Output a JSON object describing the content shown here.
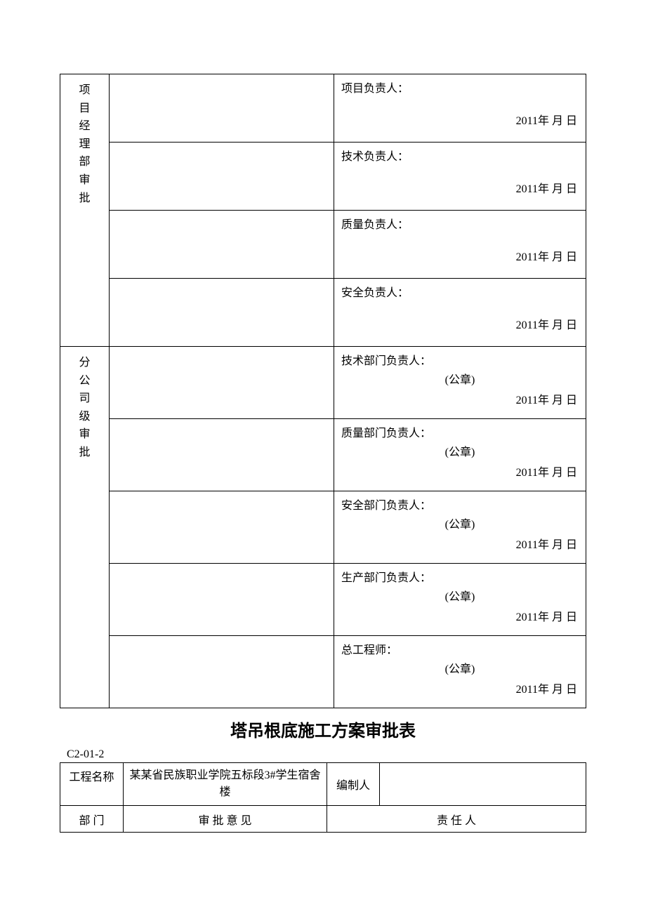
{
  "table1": {
    "section1": {
      "label": "项目经理部审批",
      "rows": [
        {
          "person": "项目负责人：",
          "date": "2011年 月 日"
        },
        {
          "person": "技术负责人：",
          "date": "2011年 月 日"
        },
        {
          "person": "质量负责人：",
          "date": "2011年 月 日"
        },
        {
          "person": "安全负责人：",
          "date": "2011年 月 日"
        }
      ]
    },
    "section2": {
      "label": "分公司级审批",
      "rows": [
        {
          "person": "技术部门负责人：",
          "seal": "(公章)",
          "date": "2011年 月 日"
        },
        {
          "person": "质量部门负责人：",
          "seal": "(公章)",
          "date": "2011年 月 日"
        },
        {
          "person": "安全部门负责人：",
          "seal": "(公章)",
          "date": "2011年 月 日"
        },
        {
          "person": "生产部门负责人：",
          "seal": "(公章)",
          "date": "2011年 月 日"
        },
        {
          "person": "总工程师：",
          "seal": "(公章)",
          "date": "2011年 月 日"
        }
      ]
    }
  },
  "title": "塔吊根底施工方案审批表",
  "code": "C2-01-2",
  "table2": {
    "row1": {
      "c1": "工程名称",
      "c2": "某某省民族职业学院五标段3#学生宿舍楼",
      "c3": "编制人",
      "c4": ""
    },
    "row2": {
      "c1": "部 门",
      "c2": "审 批 意 见",
      "c3": "责 任 人"
    }
  }
}
